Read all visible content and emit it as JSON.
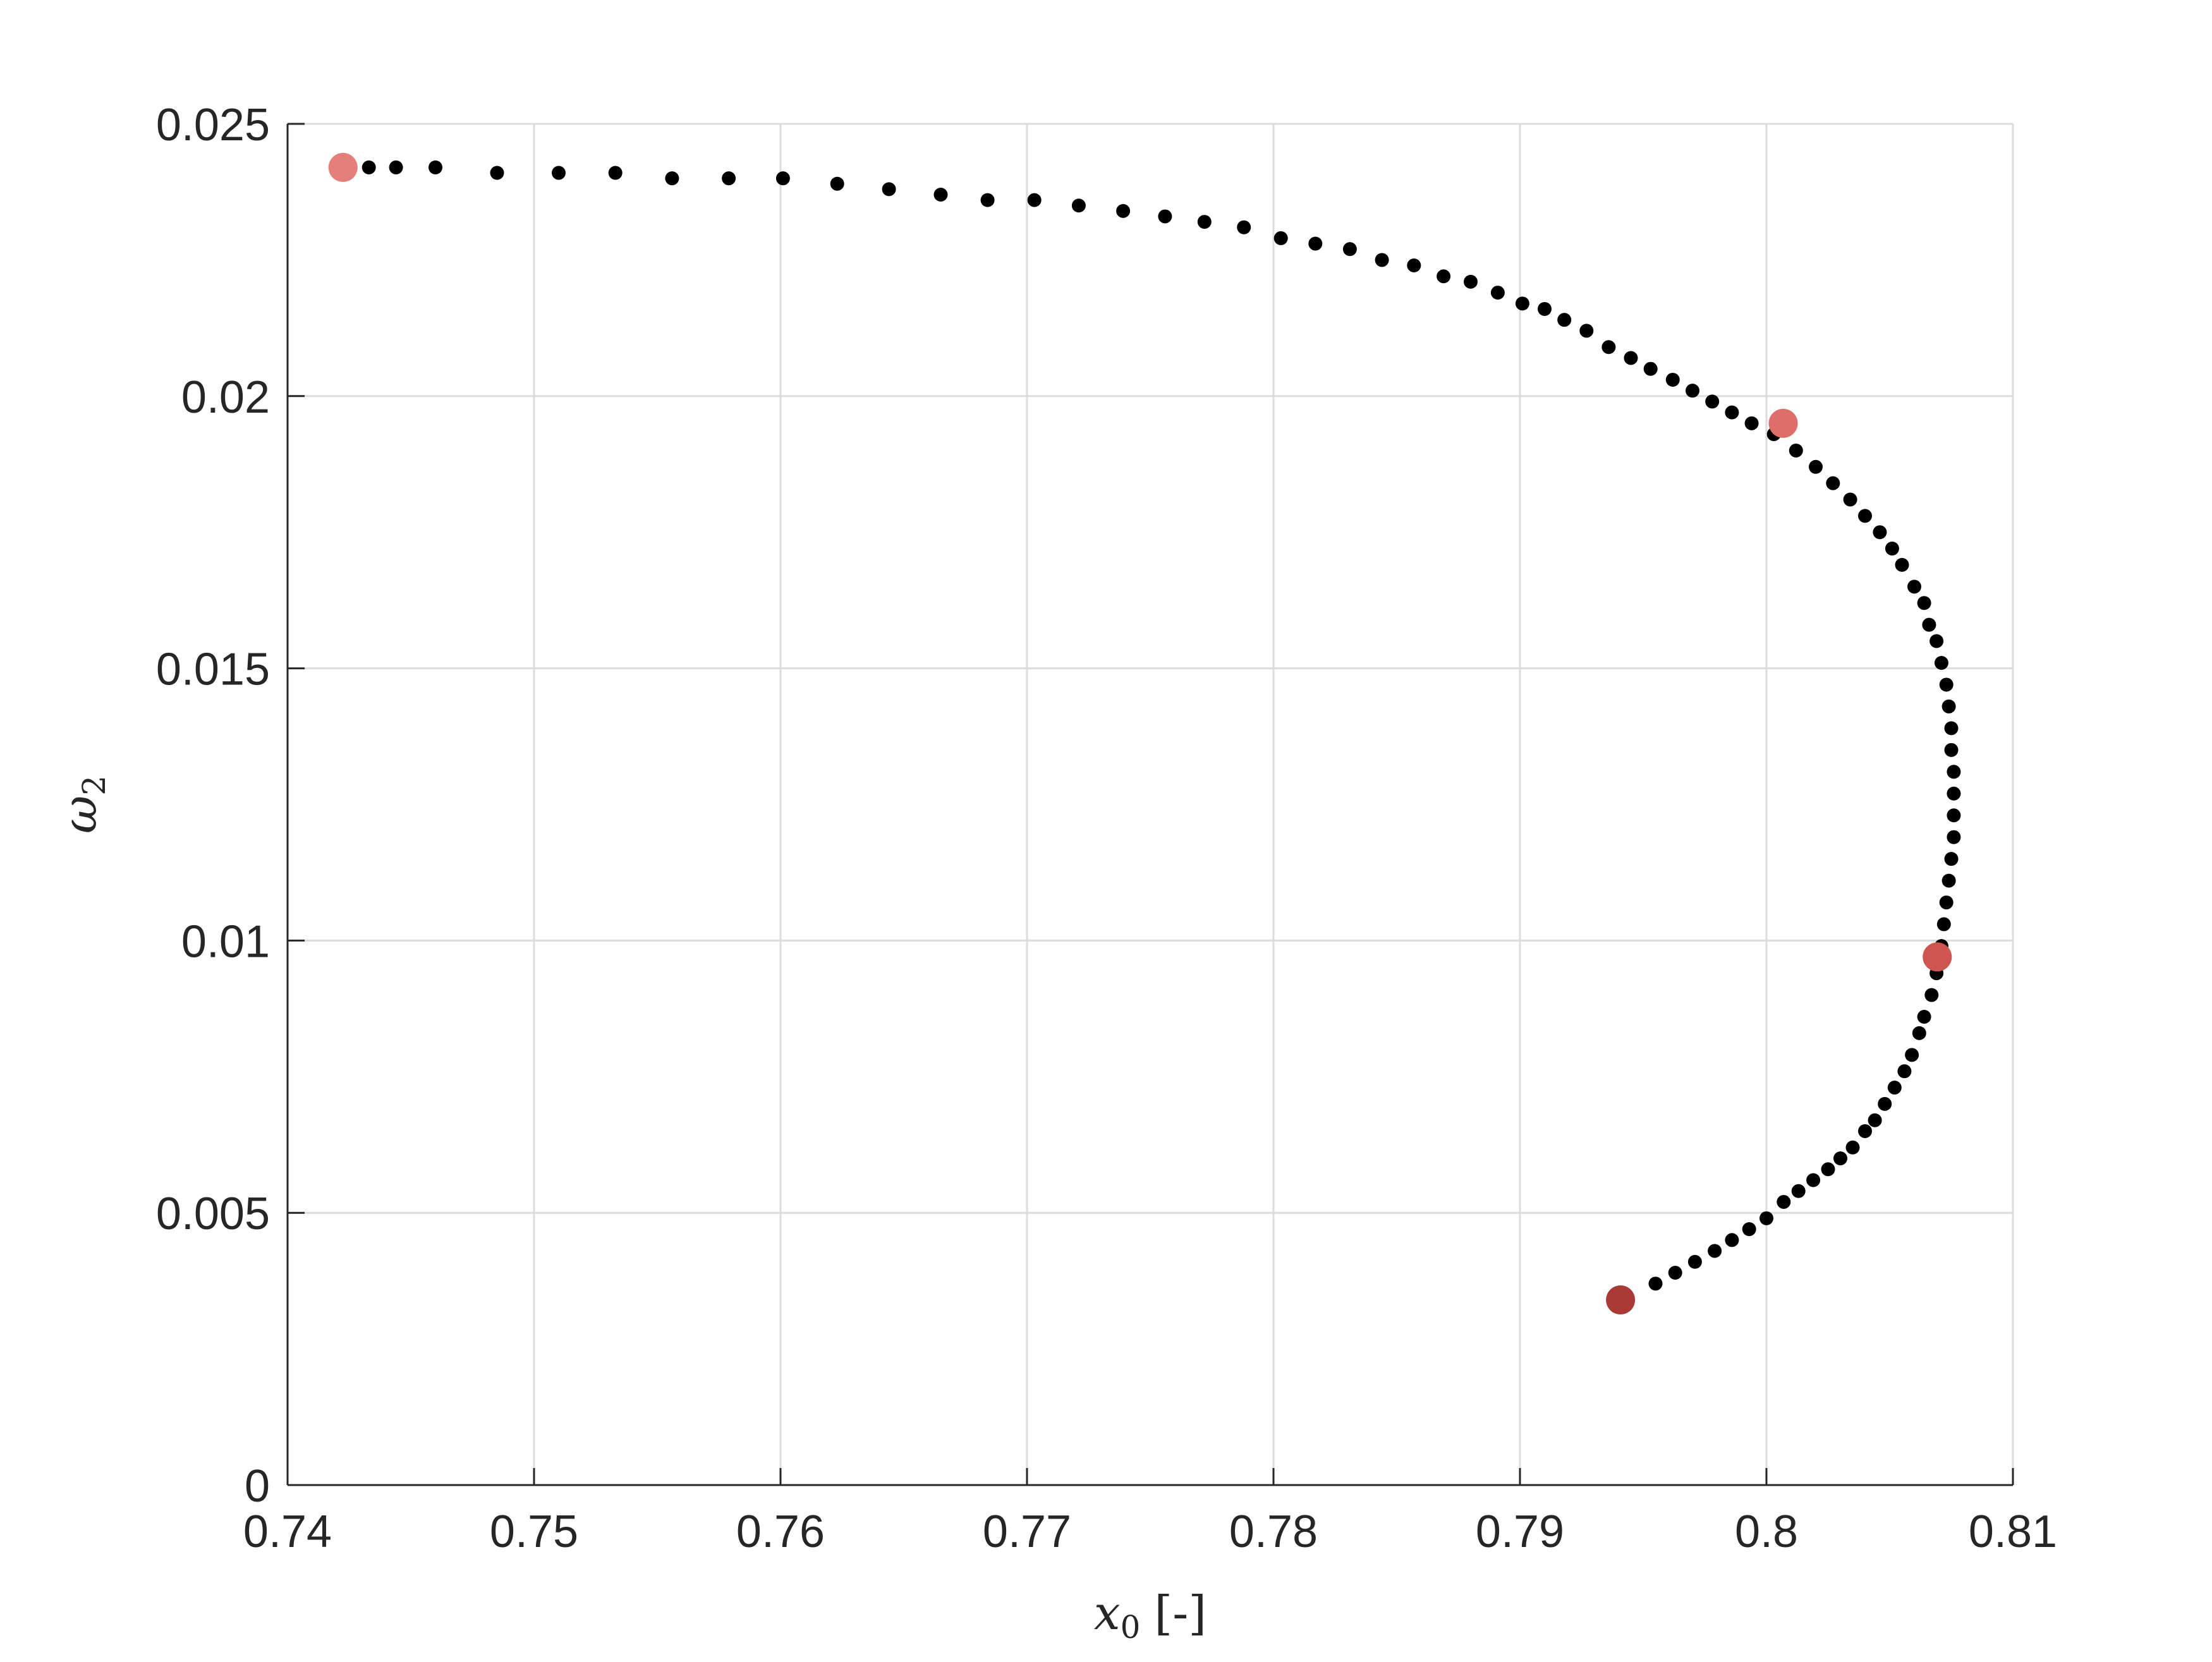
{
  "chart_data": {
    "type": "scatter",
    "title": "",
    "xlabel": {
      "symbol": "x",
      "subscript": "0",
      "unit": "[-]"
    },
    "ylabel": {
      "symbol": "ω",
      "subscript": "2"
    },
    "xlim": [
      0.74,
      0.81
    ],
    "ylim": [
      0,
      0.025
    ],
    "xticks": [
      0.74,
      0.75,
      0.76,
      0.77,
      0.78,
      0.79,
      0.8,
      0.81
    ],
    "xtick_labels": [
      "0.74",
      "0.75",
      "0.76",
      "0.77",
      "0.78",
      "0.79",
      "0.8",
      "0.81"
    ],
    "yticks": [
      0,
      0.005,
      0.01,
      0.015,
      0.02,
      0.025
    ],
    "ytick_labels": [
      "0",
      "0.005",
      "0.01",
      "0.015",
      "0.02",
      "0.025"
    ],
    "grid": true,
    "colors": {
      "path": "#000000",
      "highlight": [
        "#e57f7a",
        "#dd6e69",
        "#cf5550",
        "#a93a36"
      ],
      "grid": "#dcdcdc",
      "axis": "#262626"
    },
    "series": [
      {
        "x": [
          0.7433,
          0.7444,
          0.746,
          0.7485,
          0.751,
          0.7533,
          0.7556,
          0.7579,
          0.7601,
          0.7623,
          0.7644,
          0.7665,
          0.7684,
          0.7703,
          0.7721,
          0.7739,
          0.7756,
          0.7772,
          0.7788,
          0.7803,
          0.7817,
          0.7831,
          0.7844,
          0.7857,
          0.7869,
          0.788,
          0.7891,
          0.7901,
          0.791,
          0.7918,
          0.7927,
          0.7936,
          0.7945,
          0.7953,
          0.7962,
          0.797,
          0.7978,
          0.7986,
          0.7994,
          0.8003,
          0.8012,
          0.802,
          0.8027,
          0.8034,
          0.804,
          0.8046,
          0.8051,
          0.8055,
          0.806,
          0.8064,
          0.8066,
          0.8069,
          0.8071,
          0.8073,
          0.8074,
          0.8075,
          0.8075,
          0.8076,
          0.8076,
          0.8076,
          0.8076,
          0.8075,
          0.8074,
          0.8073,
          0.8072,
          0.8071,
          0.8069,
          0.8067,
          0.8064,
          0.8062,
          0.8059,
          0.8056,
          0.8052,
          0.8048,
          0.8044,
          0.804,
          0.8035,
          0.803,
          0.8025,
          0.8019,
          0.8013,
          0.8007,
          0.8,
          0.7993,
          0.7986,
          0.7979,
          0.7971,
          0.7963,
          0.7955
        ],
        "y": [
          0.0242,
          0.0242,
          0.0242,
          0.0241,
          0.0241,
          0.0241,
          0.024,
          0.024,
          0.024,
          0.0239,
          0.0238,
          0.0237,
          0.0236,
          0.0236,
          0.0235,
          0.0234,
          0.0233,
          0.0232,
          0.0231,
          0.0229,
          0.0228,
          0.0227,
          0.0225,
          0.0224,
          0.0222,
          0.0221,
          0.0219,
          0.0217,
          0.0216,
          0.0214,
          0.0212,
          0.0209,
          0.0207,
          0.0205,
          0.0203,
          0.0201,
          0.0199,
          0.0197,
          0.0195,
          0.0193,
          0.019,
          0.0187,
          0.0184,
          0.0181,
          0.0178,
          0.0175,
          0.0172,
          0.0169,
          0.0165,
          0.0162,
          0.0158,
          0.0155,
          0.0151,
          0.0147,
          0.0143,
          0.0139,
          0.0135,
          0.0131,
          0.0127,
          0.0123,
          0.0119,
          0.0115,
          0.0111,
          0.0107,
          0.0103,
          0.0099,
          0.0094,
          0.009,
          0.0086,
          0.0083,
          0.0079,
          0.0076,
          0.0073,
          0.007,
          0.0067,
          0.0065,
          0.0062,
          0.006,
          0.0058,
          0.0056,
          0.0054,
          0.0052,
          0.0049,
          0.0047,
          0.0045,
          0.0043,
          0.0041,
          0.0039,
          0.0037
        ]
      },
      {
        "x": [
          0.74225,
          0.80068,
          0.80693,
          0.79408
        ],
        "y": [
          0.0242,
          0.0195,
          0.0097,
          0.0034
        ]
      }
    ]
  }
}
